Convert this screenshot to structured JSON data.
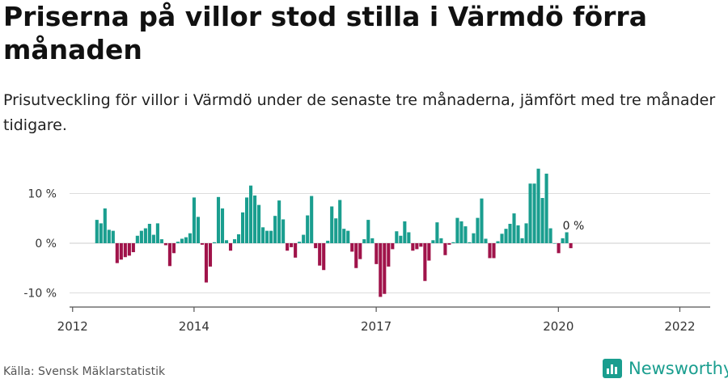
{
  "header": {
    "title": "Priserna på villor stod stilla i Värmdö förra månaden",
    "subtitle": "Prisutveckling för villor i Värmdö under de senaste tre månaderna, jämfört med tre månader tidigare."
  },
  "footer": {
    "source": "Källa: Svensk Mäklarstatistik",
    "brand": "Newsworthy"
  },
  "colors": {
    "positive": "#1a9e8f",
    "negative": "#a0134a",
    "grid": "#dddddd",
    "axis": "#555555",
    "brand": "#1a9e8f"
  },
  "chart_data": {
    "type": "bar",
    "title": "",
    "xlabel": "",
    "ylabel": "",
    "ylim": [
      -12,
      16
    ],
    "yticks": [
      {
        "value": 10,
        "label": "10 %"
      },
      {
        "value": 0,
        "label": "0 %"
      },
      {
        "value": -10,
        "label": "-10 %"
      }
    ],
    "xticks": [
      {
        "value": 2012.0,
        "label": "2012"
      },
      {
        "value": 2014.0,
        "label": "2014"
      },
      {
        "value": 2017.0,
        "label": "2017"
      },
      {
        "value": 2020.0,
        "label": "2020"
      },
      {
        "value": 2022.0,
        "label": "2022"
      }
    ],
    "xlim": [
      2011.95,
      2022.5
    ],
    "start_year": 2012.4,
    "step_years": 0.0667,
    "values": [
      4.7,
      4.0,
      7.0,
      2.7,
      2.5,
      -4.0,
      -3.3,
      -2.8,
      -2.5,
      -1.8,
      1.5,
      2.5,
      3.0,
      3.9,
      1.7,
      4.0,
      0.8,
      -0.4,
      -4.6,
      -2.0,
      0.3,
      0.9,
      1.2,
      2.0,
      9.2,
      5.3,
      -0.3,
      -7.9,
      -4.7,
      0.2,
      9.3,
      7.0,
      0.6,
      -1.5,
      0.8,
      1.8,
      6.2,
      9.2,
      11.6,
      9.6,
      7.7,
      3.2,
      2.5,
      2.5,
      5.5,
      8.6,
      4.8,
      -1.5,
      -0.8,
      -2.9,
      0.3,
      1.7,
      5.6,
      9.5,
      -1.0,
      -4.5,
      -5.4,
      0.5,
      7.4,
      5.0,
      8.7,
      2.9,
      2.5,
      -1.7,
      -5.0,
      -3.2,
      0.8,
      4.7,
      1.0,
      -4.2,
      -10.8,
      -10.2,
      -4.7,
      -1.2,
      2.4,
      1.5,
      4.4,
      2.2,
      -1.5,
      -1.2,
      -0.7,
      -7.6,
      -3.5,
      0.6,
      4.2,
      1.0,
      -2.4,
      -0.3,
      0.2,
      5.1,
      4.4,
      3.4,
      0.2,
      2.0,
      5.1,
      9.0,
      0.9,
      -3.0,
      -3.0,
      0.4,
      1.9,
      2.9,
      3.9,
      6.0,
      3.6,
      1.0,
      4.0,
      12.0,
      12.0,
      15.0,
      9.1,
      14.0,
      3.0,
      0.0,
      -2.0,
      1.0,
      2.2,
      -1.0
    ],
    "annotation": {
      "label": "0 %",
      "value": 0.0
    }
  }
}
